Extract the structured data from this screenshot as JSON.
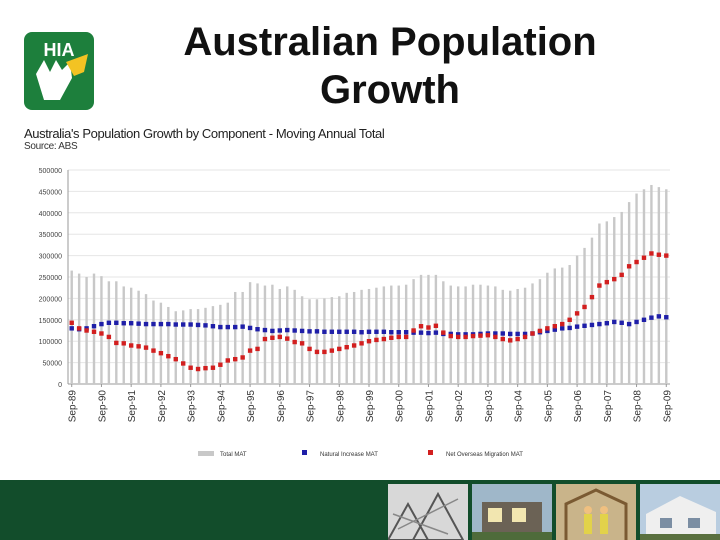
{
  "header": {
    "title_line1": "Australian Population",
    "title_line2": "Growth",
    "logo_text": "HIA"
  },
  "chart_data": {
    "type": "bar+line",
    "title": "Australia's Population Growth by Component - Moving Annual Total",
    "subtitle": "Source: ABS",
    "ylim": [
      0,
      500000
    ],
    "yticks": [
      0,
      50000,
      100000,
      150000,
      200000,
      250000,
      300000,
      350000,
      400000,
      450000,
      500000
    ],
    "xticks": [
      "Sep-89",
      "Sep-90",
      "Sep-91",
      "Sep-92",
      "Sep-93",
      "Sep-94",
      "Sep-95",
      "Sep-96",
      "Sep-97",
      "Sep-98",
      "Sep-99",
      "Sep-00",
      "Sep-01",
      "Sep-02",
      "Sep-03",
      "Sep-04",
      "Sep-05",
      "Sep-06",
      "Sep-07",
      "Sep-08",
      "Sep-09"
    ],
    "grid": true,
    "legend_position": "bottom",
    "series": [
      {
        "name": "Total MAT",
        "kind": "bar",
        "color": "#c8c8c8",
        "values": [
          265000,
          258000,
          250000,
          258000,
          252000,
          240000,
          240000,
          228000,
          225000,
          218000,
          210000,
          195000,
          190000,
          180000,
          170000,
          172000,
          175000,
          175000,
          178000,
          182000,
          185000,
          190000,
          215000,
          215000,
          238000,
          235000,
          230000,
          232000,
          222000,
          228000,
          220000,
          205000,
          198000,
          198000,
          200000,
          203000,
          205000,
          213000,
          215000,
          220000,
          222000,
          225000,
          228000,
          230000,
          230000,
          232000,
          245000,
          255000,
          255000,
          255000,
          240000,
          230000,
          228000,
          228000,
          232000,
          232000,
          230000,
          228000,
          220000,
          218000,
          222000,
          225000,
          235000,
          245000,
          260000,
          270000,
          272000,
          278000,
          300000,
          318000,
          342000,
          375000,
          380000,
          390000,
          402000,
          425000,
          445000,
          455000,
          465000,
          460000,
          455000
        ]
      },
      {
        "name": "Natural Increase MAT",
        "kind": "line",
        "color": "#1f1fa8",
        "values": [
          130000,
          128000,
          130000,
          135000,
          140000,
          143000,
          143000,
          142000,
          142000,
          141000,
          140000,
          140000,
          140000,
          140000,
          139000,
          139000,
          139000,
          138000,
          137000,
          135000,
          133000,
          133000,
          133000,
          134000,
          131000,
          128000,
          126000,
          124000,
          125000,
          126000,
          125000,
          124000,
          123000,
          123000,
          122000,
          122000,
          122000,
          122000,
          122000,
          121000,
          122000,
          122000,
          122000,
          121000,
          121000,
          121000,
          120000,
          120000,
          119000,
          120000,
          117000,
          117000,
          116000,
          116000,
          116000,
          117000,
          118000,
          118000,
          118000,
          117000,
          117000,
          117000,
          118000,
          121000,
          124000,
          127000,
          130000,
          131000,
          134000,
          136000,
          138000,
          140000,
          142000,
          145000,
          143000,
          140000,
          145000,
          150000,
          155000,
          158000,
          156000
        ]
      },
      {
        "name": "Net Overseas Migration MAT",
        "kind": "line",
        "color": "#d21f1f",
        "values": [
          143000,
          130000,
          125000,
          122000,
          118000,
          110000,
          96000,
          95000,
          90000,
          88000,
          85000,
          78000,
          72000,
          65000,
          58000,
          48000,
          38000,
          35000,
          37000,
          38000,
          45000,
          55000,
          58000,
          62000,
          78000,
          82000,
          105000,
          108000,
          110000,
          106000,
          98000,
          95000,
          82000,
          75000,
          75000,
          78000,
          82000,
          86000,
          90000,
          95000,
          100000,
          103000,
          105000,
          108000,
          110000,
          110000,
          125000,
          135000,
          132000,
          136000,
          120000,
          112000,
          110000,
          110000,
          112000,
          113000,
          114000,
          110000,
          105000,
          102000,
          105000,
          110000,
          118000,
          124000,
          130000,
          135000,
          140000,
          150000,
          165000,
          180000,
          203000,
          230000,
          238000,
          245000,
          255000,
          275000,
          285000,
          295000,
          305000,
          302000,
          300000
        ]
      }
    ]
  },
  "colors": {
    "footer": "#124d2b",
    "logo_green": "#1d7f3c",
    "logo_yellow": "#f3c323"
  }
}
